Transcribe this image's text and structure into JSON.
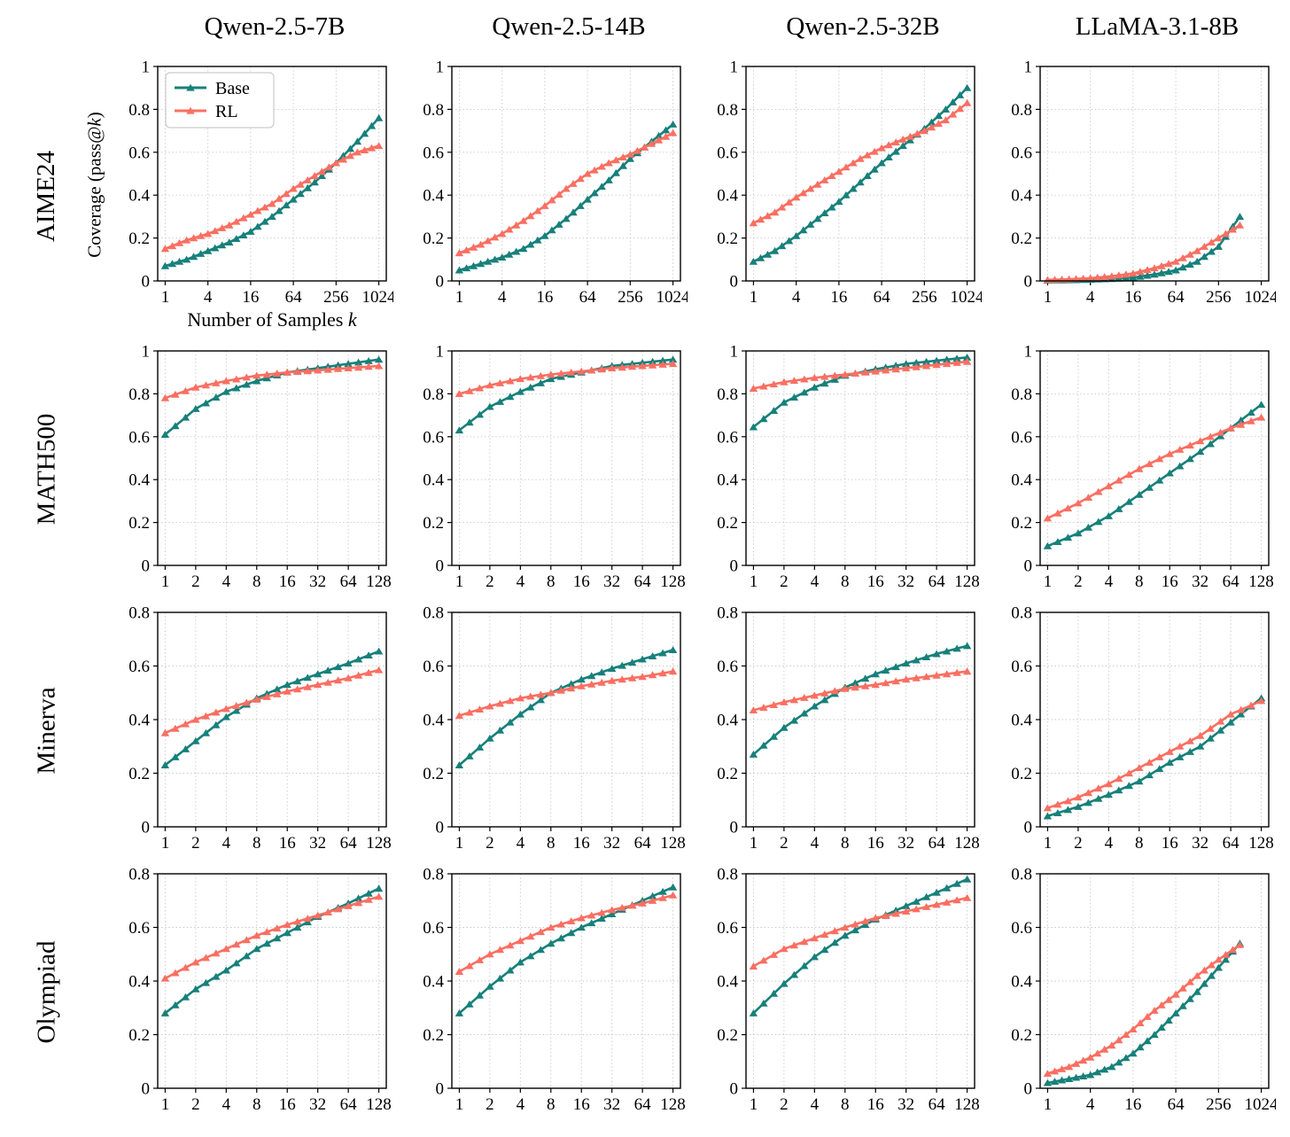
{
  "figure": {
    "column_titles": [
      "Qwen-2.5-7B",
      "Qwen-2.5-14B",
      "Qwen-2.5-32B",
      "LLaMA-3.1-8B"
    ],
    "row_labels": [
      "AIME24",
      "MATH500",
      "Minerva",
      "Olympiad"
    ],
    "ylabel": "Coverage (pass@k)",
    "xlabel": "Number of Samples k",
    "legend": [
      "Base",
      "RL"
    ],
    "colors": {
      "Base": "#17807a",
      "RL": "#f96f62",
      "grid": "#c9c9c9",
      "axis": "#000000"
    }
  },
  "chart_data": [
    {
      "row": "AIME24",
      "col": "Qwen-2.5-7B",
      "type": "line",
      "xscale": "log",
      "legend": true,
      "xlim": [
        1,
        1024
      ],
      "ylim": [
        0,
        1
      ],
      "xticks": [
        1,
        4,
        16,
        64,
        256,
        1024
      ],
      "yticks": [
        0,
        0.2,
        0.4,
        0.6,
        0.8,
        1
      ],
      "x": [
        1,
        2,
        4,
        8,
        16,
        32,
        64,
        128,
        256,
        512,
        1024
      ],
      "series": [
        {
          "name": "Base",
          "y": [
            0.07,
            0.1,
            0.14,
            0.18,
            0.23,
            0.3,
            0.38,
            0.46,
            0.55,
            0.65,
            0.76
          ]
        },
        {
          "name": "RL",
          "y": [
            0.15,
            0.19,
            0.22,
            0.26,
            0.31,
            0.36,
            0.43,
            0.49,
            0.55,
            0.6,
            0.63
          ]
        }
      ]
    },
    {
      "row": "AIME24",
      "col": "Qwen-2.5-14B",
      "type": "line",
      "xscale": "log",
      "legend": false,
      "xlim": [
        1,
        1024
      ],
      "ylim": [
        0,
        1
      ],
      "xticks": [
        1,
        4,
        16,
        64,
        256,
        1024
      ],
      "yticks": [
        0,
        0.2,
        0.4,
        0.6,
        0.8,
        1
      ],
      "x": [
        1,
        2,
        4,
        8,
        16,
        32,
        64,
        128,
        256,
        512,
        1024
      ],
      "series": [
        {
          "name": "Base",
          "y": [
            0.05,
            0.08,
            0.11,
            0.15,
            0.21,
            0.29,
            0.38,
            0.47,
            0.57,
            0.65,
            0.73
          ]
        },
        {
          "name": "RL",
          "y": [
            0.13,
            0.17,
            0.22,
            0.28,
            0.35,
            0.43,
            0.5,
            0.55,
            0.59,
            0.64,
            0.69
          ]
        }
      ]
    },
    {
      "row": "AIME24",
      "col": "Qwen-2.5-32B",
      "type": "line",
      "xscale": "log",
      "legend": false,
      "xlim": [
        1,
        1024
      ],
      "ylim": [
        0,
        1
      ],
      "xticks": [
        1,
        4,
        16,
        64,
        256,
        1024
      ],
      "yticks": [
        0,
        0.2,
        0.4,
        0.6,
        0.8,
        1
      ],
      "x": [
        1,
        2,
        4,
        8,
        16,
        32,
        64,
        128,
        256,
        512,
        1024
      ],
      "series": [
        {
          "name": "Base",
          "y": [
            0.09,
            0.14,
            0.21,
            0.29,
            0.37,
            0.46,
            0.55,
            0.63,
            0.71,
            0.8,
            0.9
          ]
        },
        {
          "name": "RL",
          "y": [
            0.27,
            0.32,
            0.39,
            0.45,
            0.51,
            0.57,
            0.62,
            0.66,
            0.7,
            0.75,
            0.83
          ]
        }
      ]
    },
    {
      "row": "AIME24",
      "col": "LLaMA-3.1-8B",
      "type": "line",
      "xscale": "log",
      "legend": false,
      "xlim": [
        1,
        1024
      ],
      "ylim": [
        0,
        1
      ],
      "xticks": [
        1,
        4,
        16,
        64,
        256,
        1024
      ],
      "yticks": [
        0,
        0.2,
        0.4,
        0.6,
        0.8,
        1
      ],
      "x": [
        1,
        2,
        4,
        8,
        16,
        32,
        64,
        128,
        256,
        512
      ],
      "series": [
        {
          "name": "Base",
          "y": [
            0.003,
            0.004,
            0.006,
            0.01,
            0.016,
            0.03,
            0.05,
            0.09,
            0.16,
            0.3
          ]
        },
        {
          "name": "RL",
          "y": [
            0.005,
            0.008,
            0.013,
            0.022,
            0.035,
            0.06,
            0.09,
            0.14,
            0.2,
            0.26
          ]
        }
      ]
    },
    {
      "row": "MATH500",
      "col": "Qwen-2.5-7B",
      "type": "line",
      "xscale": "log",
      "legend": false,
      "xlim": [
        1,
        128
      ],
      "ylim": [
        0,
        1
      ],
      "xticks": [
        1,
        2,
        4,
        8,
        16,
        32,
        64,
        128
      ],
      "yticks": [
        0,
        0.2,
        0.4,
        0.6,
        0.8,
        1
      ],
      "x": [
        1,
        2,
        4,
        8,
        16,
        32,
        64,
        128
      ],
      "series": [
        {
          "name": "Base",
          "y": [
            0.61,
            0.73,
            0.81,
            0.86,
            0.9,
            0.92,
            0.94,
            0.96
          ]
        },
        {
          "name": "RL",
          "y": [
            0.78,
            0.83,
            0.86,
            0.885,
            0.9,
            0.91,
            0.92,
            0.93
          ]
        }
      ]
    },
    {
      "row": "MATH500",
      "col": "Qwen-2.5-14B",
      "type": "line",
      "xscale": "log",
      "legend": false,
      "xlim": [
        1,
        128
      ],
      "ylim": [
        0,
        1
      ],
      "xticks": [
        1,
        2,
        4,
        8,
        16,
        32,
        64,
        128
      ],
      "yticks": [
        0,
        0.2,
        0.4,
        0.6,
        0.8,
        1
      ],
      "x": [
        1,
        2,
        4,
        8,
        16,
        32,
        64,
        128
      ],
      "series": [
        {
          "name": "Base",
          "y": [
            0.63,
            0.74,
            0.81,
            0.87,
            0.9,
            0.93,
            0.945,
            0.96
          ]
        },
        {
          "name": "RL",
          "y": [
            0.8,
            0.84,
            0.87,
            0.89,
            0.905,
            0.92,
            0.93,
            0.94
          ]
        }
      ]
    },
    {
      "row": "MATH500",
      "col": "Qwen-2.5-32B",
      "type": "line",
      "xscale": "log",
      "legend": false,
      "xlim": [
        1,
        128
      ],
      "ylim": [
        0,
        1
      ],
      "xticks": [
        1,
        2,
        4,
        8,
        16,
        32,
        64,
        128
      ],
      "yticks": [
        0,
        0.2,
        0.4,
        0.6,
        0.8,
        1
      ],
      "x": [
        1,
        2,
        4,
        8,
        16,
        32,
        64,
        128
      ],
      "series": [
        {
          "name": "Base",
          "y": [
            0.645,
            0.76,
            0.83,
            0.885,
            0.915,
            0.94,
            0.955,
            0.97
          ]
        },
        {
          "name": "RL",
          "y": [
            0.825,
            0.855,
            0.875,
            0.89,
            0.905,
            0.92,
            0.935,
            0.95
          ]
        }
      ]
    },
    {
      "row": "MATH500",
      "col": "LLaMA-3.1-8B",
      "type": "line",
      "xscale": "log",
      "legend": false,
      "xlim": [
        1,
        128
      ],
      "ylim": [
        0,
        1
      ],
      "xticks": [
        1,
        2,
        4,
        8,
        16,
        32,
        64,
        128
      ],
      "yticks": [
        0,
        0.2,
        0.4,
        0.6,
        0.8,
        1
      ],
      "x": [
        1,
        2,
        4,
        8,
        16,
        32,
        64,
        128
      ],
      "series": [
        {
          "name": "Base",
          "y": [
            0.09,
            0.15,
            0.23,
            0.33,
            0.43,
            0.53,
            0.64,
            0.75
          ]
        },
        {
          "name": "RL",
          "y": [
            0.22,
            0.29,
            0.37,
            0.45,
            0.52,
            0.58,
            0.64,
            0.69
          ]
        }
      ]
    },
    {
      "row": "Minerva",
      "col": "Qwen-2.5-7B",
      "type": "line",
      "xscale": "log",
      "legend": false,
      "xlim": [
        1,
        128
      ],
      "ylim": [
        0,
        0.8
      ],
      "xticks": [
        1,
        2,
        4,
        8,
        16,
        32,
        64,
        128
      ],
      "yticks": [
        0,
        0.2,
        0.4,
        0.6,
        0.8
      ],
      "x": [
        1,
        2,
        4,
        8,
        16,
        32,
        64,
        128
      ],
      "series": [
        {
          "name": "Base",
          "y": [
            0.23,
            0.32,
            0.41,
            0.48,
            0.53,
            0.57,
            0.61,
            0.655
          ]
        },
        {
          "name": "RL",
          "y": [
            0.35,
            0.4,
            0.44,
            0.475,
            0.505,
            0.53,
            0.555,
            0.585
          ]
        }
      ]
    },
    {
      "row": "Minerva",
      "col": "Qwen-2.5-14B",
      "type": "line",
      "xscale": "log",
      "legend": false,
      "xlim": [
        1,
        128
      ],
      "ylim": [
        0,
        0.8
      ],
      "xticks": [
        1,
        2,
        4,
        8,
        16,
        32,
        64,
        128
      ],
      "yticks": [
        0,
        0.2,
        0.4,
        0.6,
        0.8
      ],
      "x": [
        1,
        2,
        4,
        8,
        16,
        32,
        64,
        128
      ],
      "series": [
        {
          "name": "Base",
          "y": [
            0.23,
            0.33,
            0.42,
            0.5,
            0.55,
            0.59,
            0.625,
            0.66
          ]
        },
        {
          "name": "RL",
          "y": [
            0.415,
            0.45,
            0.48,
            0.5,
            0.525,
            0.545,
            0.56,
            0.58
          ]
        }
      ]
    },
    {
      "row": "Minerva",
      "col": "Qwen-2.5-32B",
      "type": "line",
      "xscale": "log",
      "legend": false,
      "xlim": [
        1,
        128
      ],
      "ylim": [
        0,
        0.8
      ],
      "xticks": [
        1,
        2,
        4,
        8,
        16,
        32,
        64,
        128
      ],
      "yticks": [
        0,
        0.2,
        0.4,
        0.6,
        0.8
      ],
      "x": [
        1,
        2,
        4,
        8,
        16,
        32,
        64,
        128
      ],
      "series": [
        {
          "name": "Base",
          "y": [
            0.27,
            0.37,
            0.45,
            0.52,
            0.57,
            0.61,
            0.645,
            0.675
          ]
        },
        {
          "name": "RL",
          "y": [
            0.435,
            0.465,
            0.49,
            0.515,
            0.53,
            0.55,
            0.565,
            0.58
          ]
        }
      ]
    },
    {
      "row": "Minerva",
      "col": "LLaMA-3.1-8B",
      "type": "line",
      "xscale": "log",
      "legend": false,
      "xlim": [
        1,
        128
      ],
      "ylim": [
        0,
        0.8
      ],
      "xticks": [
        1,
        2,
        4,
        8,
        16,
        32,
        64,
        128
      ],
      "yticks": [
        0,
        0.2,
        0.4,
        0.6,
        0.8
      ],
      "x": [
        1,
        2,
        4,
        8,
        16,
        32,
        64,
        128
      ],
      "series": [
        {
          "name": "Base",
          "y": [
            0.04,
            0.075,
            0.12,
            0.17,
            0.24,
            0.3,
            0.39,
            0.48
          ]
        },
        {
          "name": "RL",
          "y": [
            0.07,
            0.11,
            0.16,
            0.22,
            0.28,
            0.34,
            0.42,
            0.47
          ]
        }
      ]
    },
    {
      "row": "Olympiad",
      "col": "Qwen-2.5-7B",
      "type": "line",
      "xscale": "log",
      "legend": false,
      "xlim": [
        1,
        128
      ],
      "ylim": [
        0,
        0.8
      ],
      "xticks": [
        1,
        2,
        4,
        8,
        16,
        32,
        64,
        128
      ],
      "yticks": [
        0,
        0.2,
        0.4,
        0.6,
        0.8
      ],
      "x": [
        1,
        2,
        4,
        8,
        16,
        32,
        64,
        128
      ],
      "series": [
        {
          "name": "Base",
          "y": [
            0.28,
            0.37,
            0.44,
            0.52,
            0.58,
            0.64,
            0.69,
            0.745
          ]
        },
        {
          "name": "RL",
          "y": [
            0.41,
            0.47,
            0.52,
            0.57,
            0.61,
            0.645,
            0.68,
            0.715
          ]
        }
      ]
    },
    {
      "row": "Olympiad",
      "col": "Qwen-2.5-14B",
      "type": "line",
      "xscale": "log",
      "legend": false,
      "xlim": [
        1,
        128
      ],
      "ylim": [
        0,
        0.8
      ],
      "xticks": [
        1,
        2,
        4,
        8,
        16,
        32,
        64,
        128
      ],
      "yticks": [
        0,
        0.2,
        0.4,
        0.6,
        0.8
      ],
      "x": [
        1,
        2,
        4,
        8,
        16,
        32,
        64,
        128
      ],
      "series": [
        {
          "name": "Base",
          "y": [
            0.28,
            0.38,
            0.47,
            0.54,
            0.6,
            0.65,
            0.7,
            0.75
          ]
        },
        {
          "name": "RL",
          "y": [
            0.435,
            0.5,
            0.55,
            0.6,
            0.635,
            0.665,
            0.69,
            0.72
          ]
        }
      ]
    },
    {
      "row": "Olympiad",
      "col": "Qwen-2.5-32B",
      "type": "line",
      "xscale": "log",
      "legend": false,
      "xlim": [
        1,
        128
      ],
      "ylim": [
        0,
        0.8
      ],
      "xticks": [
        1,
        2,
        4,
        8,
        16,
        32,
        64,
        128
      ],
      "yticks": [
        0,
        0.2,
        0.4,
        0.6,
        0.8
      ],
      "x": [
        1,
        2,
        4,
        8,
        16,
        32,
        64,
        128
      ],
      "series": [
        {
          "name": "Base",
          "y": [
            0.28,
            0.39,
            0.49,
            0.57,
            0.63,
            0.68,
            0.73,
            0.78
          ]
        },
        {
          "name": "RL",
          "y": [
            0.455,
            0.52,
            0.56,
            0.6,
            0.635,
            0.66,
            0.685,
            0.71
          ]
        }
      ]
    },
    {
      "row": "Olympiad",
      "col": "LLaMA-3.1-8B",
      "type": "line",
      "xscale": "log",
      "legend": false,
      "xlim": [
        1,
        1024
      ],
      "ylim": [
        0,
        0.8
      ],
      "xticks": [
        1,
        4,
        16,
        64,
        256,
        1024
      ],
      "yticks": [
        0,
        0.2,
        0.4,
        0.6,
        0.8
      ],
      "x": [
        1,
        2,
        4,
        8,
        16,
        32,
        64,
        128,
        256,
        512
      ],
      "series": [
        {
          "name": "Base",
          "y": [
            0.02,
            0.035,
            0.05,
            0.08,
            0.13,
            0.2,
            0.28,
            0.36,
            0.45,
            0.54
          ]
        },
        {
          "name": "RL",
          "y": [
            0.055,
            0.08,
            0.115,
            0.16,
            0.22,
            0.29,
            0.35,
            0.42,
            0.48,
            0.535
          ]
        }
      ]
    }
  ]
}
